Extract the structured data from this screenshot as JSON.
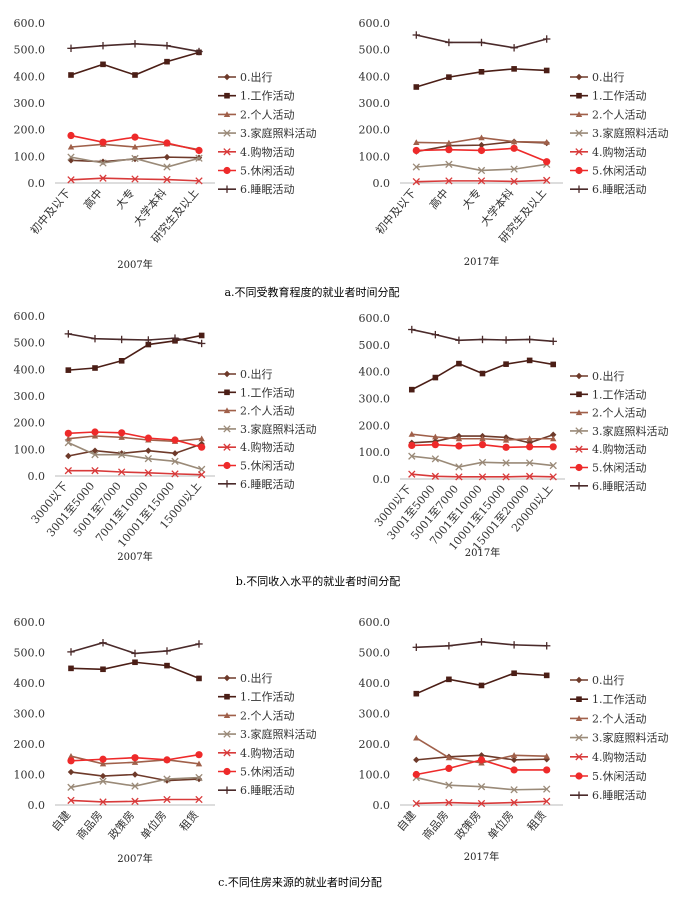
{
  "series_names": [
    "0.出行",
    "1.工作活动",
    "2.个人活动",
    "3.家庭照料活动",
    "4.购物活动",
    "5.休闲活动",
    "6.睡眠活动"
  ],
  "series_colors": [
    "#6e3a2a",
    "#4b1e16",
    "#a0604a",
    "#9a8a78",
    "#d83a3a",
    "#ee2a2a",
    "#4a2a2a"
  ],
  "series_markers": [
    "diamond",
    "square",
    "triangle",
    "x",
    "x",
    "circle",
    "plus"
  ],
  "captions": [
    "a.不同受教育程度的就业者时间分配",
    "b.不同收入水平的就业者时间分配",
    "c.不同住房来源的就业者时间分配"
  ],
  "chart_data": [
    {
      "type": "line",
      "title": "2007年",
      "ylim": [
        0,
        600
      ],
      "yticks": [
        "0.0",
        "100.0",
        "200.0",
        "300.0",
        "400.0",
        "500.0",
        "600.0"
      ],
      "categories": [
        "初中及以下",
        "高中",
        "大专",
        "大学本科",
        "研究生及以上"
      ],
      "series": [
        {
          "name": "0.出行",
          "values": [
            85,
            80,
            90,
            97,
            95
          ]
        },
        {
          "name": "1.工作活动",
          "values": [
            405,
            445,
            405,
            455,
            490
          ]
        },
        {
          "name": "2.个人活动",
          "values": [
            135,
            145,
            135,
            147,
            125
          ]
        },
        {
          "name": "3.家庭照料活动",
          "values": [
            97,
            75,
            92,
            60,
            93
          ]
        },
        {
          "name": "4.购物活动",
          "values": [
            12,
            18,
            15,
            13,
            8
          ]
        },
        {
          "name": "5.休闲活动",
          "values": [
            178,
            153,
            172,
            150,
            122
          ]
        },
        {
          "name": "6.睡眠活动",
          "values": [
            505,
            515,
            522,
            515,
            493
          ]
        }
      ]
    },
    {
      "type": "line",
      "title": "2017年",
      "ylim": [
        0,
        600
      ],
      "yticks": [
        "0.0",
        "100.0",
        "200.0",
        "300.0",
        "400.0",
        "500.0",
        "600.0"
      ],
      "categories": [
        "初中及以下",
        "高中",
        "大专",
        "大学本科",
        "研究生及以上"
      ],
      "series": [
        {
          "name": "0.出行",
          "values": [
            118,
            140,
            142,
            155,
            150
          ]
        },
        {
          "name": "1.工作活动",
          "values": [
            360,
            397,
            417,
            428,
            422
          ]
        },
        {
          "name": "2.个人活动",
          "values": [
            152,
            150,
            170,
            155,
            153
          ]
        },
        {
          "name": "3.家庭照料活动",
          "values": [
            60,
            70,
            47,
            52,
            70
          ]
        },
        {
          "name": "4.购物活动",
          "values": [
            5,
            8,
            8,
            6,
            10
          ]
        },
        {
          "name": "5.休闲活动",
          "values": [
            122,
            125,
            122,
            130,
            80
          ]
        },
        {
          "name": "6.睡眠活动",
          "values": [
            555,
            527,
            527,
            507,
            540
          ]
        }
      ]
    },
    {
      "type": "line",
      "title": "2007年",
      "ylim": [
        0,
        600
      ],
      "yticks": [
        "0.0",
        "100.0",
        "200.0",
        "300.0",
        "400.0",
        "500.0",
        "600.0"
      ],
      "categories": [
        "3000以下",
        "3001至5000",
        "5001至7000",
        "7001至10000",
        "10001至15000",
        "15000以上"
      ],
      "series": [
        {
          "name": "0.出行",
          "values": [
            75,
            95,
            85,
            95,
            85,
            120
          ]
        },
        {
          "name": "1.工作活动",
          "values": [
            397,
            405,
            432,
            493,
            507,
            527
          ]
        },
        {
          "name": "2.个人活动",
          "values": [
            140,
            150,
            145,
            135,
            130,
            140
          ]
        },
        {
          "name": "3.家庭照料活动",
          "values": [
            125,
            80,
            80,
            65,
            55,
            25
          ]
        },
        {
          "name": "4.购物活动",
          "values": [
            20,
            20,
            15,
            12,
            8,
            5
          ]
        },
        {
          "name": "5.休闲活动",
          "values": [
            160,
            165,
            162,
            142,
            135,
            108
          ]
        },
        {
          "name": "6.睡眠活动",
          "values": [
            533,
            515,
            512,
            510,
            517,
            497
          ]
        }
      ]
    },
    {
      "type": "line",
      "title": "2017年",
      "ylim": [
        0,
        600
      ],
      "yticks": [
        "0.0",
        "100.0",
        "200.0",
        "300.0",
        "400.0",
        "500.0",
        "600.0"
      ],
      "categories": [
        "3000以下",
        "3001至5000",
        "5001至7000",
        "7001至10000",
        "10001至15000",
        "15001至20000",
        "20000以上"
      ],
      "series": [
        {
          "name": "0.出行",
          "values": [
            135,
            140,
            160,
            160,
            155,
            135,
            165
          ]
        },
        {
          "name": "1.工作活动",
          "values": [
            333,
            378,
            430,
            393,
            428,
            442,
            427
          ]
        },
        {
          "name": "2.个人活动",
          "values": [
            167,
            157,
            150,
            150,
            145,
            150,
            150
          ]
        },
        {
          "name": "3.家庭照料活动",
          "values": [
            85,
            75,
            45,
            62,
            60,
            60,
            50
          ]
        },
        {
          "name": "4.购物活动",
          "values": [
            18,
            10,
            8,
            8,
            8,
            10,
            8
          ]
        },
        {
          "name": "5.休闲活动",
          "values": [
            125,
            128,
            123,
            128,
            118,
            120,
            120
          ]
        },
        {
          "name": "6.睡眠活动",
          "values": [
            557,
            538,
            517,
            520,
            518,
            520,
            513
          ]
        }
      ]
    },
    {
      "type": "line",
      "title": "2007年",
      "ylim": [
        0,
        600
      ],
      "yticks": [
        "0.0",
        "100.0",
        "200.0",
        "300.0",
        "400.0",
        "500.0",
        "600.0"
      ],
      "categories": [
        "自建",
        "商品房",
        "政策房",
        "单位房",
        "租赁"
      ],
      "series": [
        {
          "name": "0.出行",
          "values": [
            108,
            95,
            100,
            80,
            85
          ]
        },
        {
          "name": "1.工作活动",
          "values": [
            448,
            445,
            468,
            457,
            415
          ]
        },
        {
          "name": "2.个人活动",
          "values": [
            160,
            135,
            140,
            148,
            135
          ]
        },
        {
          "name": "3.家庭照料活动",
          "values": [
            58,
            78,
            62,
            85,
            90
          ]
        },
        {
          "name": "4.购物活动",
          "values": [
            15,
            10,
            12,
            18,
            18
          ]
        },
        {
          "name": "5.休闲活动",
          "values": [
            145,
            150,
            155,
            148,
            165
          ]
        },
        {
          "name": "6.睡眠活动",
          "values": [
            502,
            532,
            497,
            505,
            528
          ]
        }
      ]
    },
    {
      "type": "line",
      "title": "2017年",
      "ylim": [
        0,
        600
      ],
      "yticks": [
        "0.0",
        "100.0",
        "200.0",
        "300.0",
        "400.0",
        "500.0",
        "600.0"
      ],
      "categories": [
        "自建",
        "商品房",
        "政策房",
        "单位房",
        "租赁"
      ],
      "series": [
        {
          "name": "0.出行",
          "values": [
            148,
            158,
            163,
            148,
            150
          ]
        },
        {
          "name": "1.工作活动",
          "values": [
            365,
            412,
            392,
            432,
            425
          ]
        },
        {
          "name": "2.个人活动",
          "values": [
            220,
            155,
            138,
            163,
            160
          ]
        },
        {
          "name": "3.家庭照料活动",
          "values": [
            90,
            65,
            60,
            50,
            52
          ]
        },
        {
          "name": "4.购物活动",
          "values": [
            5,
            8,
            5,
            8,
            12
          ]
        },
        {
          "name": "5.休闲活动",
          "values": [
            100,
            120,
            148,
            115,
            115
          ]
        },
        {
          "name": "6.睡眠活动",
          "values": [
            517,
            522,
            535,
            525,
            522
          ]
        }
      ]
    }
  ]
}
